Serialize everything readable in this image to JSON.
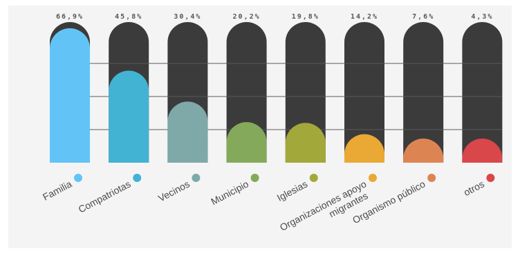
{
  "chart_data": {
    "type": "bar",
    "categories": [
      "Familia",
      "Compatriotas",
      "Vecinos",
      "Municipio",
      "Iglesias",
      [
        "Organizaciones apoyo",
        "migrantes"
      ],
      "Organismo público",
      "otros"
    ],
    "value_labels": [
      "66,9%",
      "45,8%",
      "30,4%",
      "20,2%",
      "19,8%",
      "14,2%",
      "7,6%",
      "4,3%"
    ],
    "values": [
      66.9,
      45.8,
      30.4,
      20.2,
      19.8,
      14.2,
      7.6,
      4.3
    ],
    "colors": [
      "#62c4f6",
      "#43b3d4",
      "#7fa9a9",
      "#85a95a",
      "#a3a83a",
      "#eaa934",
      "#dd8552",
      "#d9474a"
    ],
    "track_color": "#3b3b3b",
    "title": "",
    "xlabel": "",
    "ylabel": "",
    "legend": "none",
    "grid": true
  }
}
